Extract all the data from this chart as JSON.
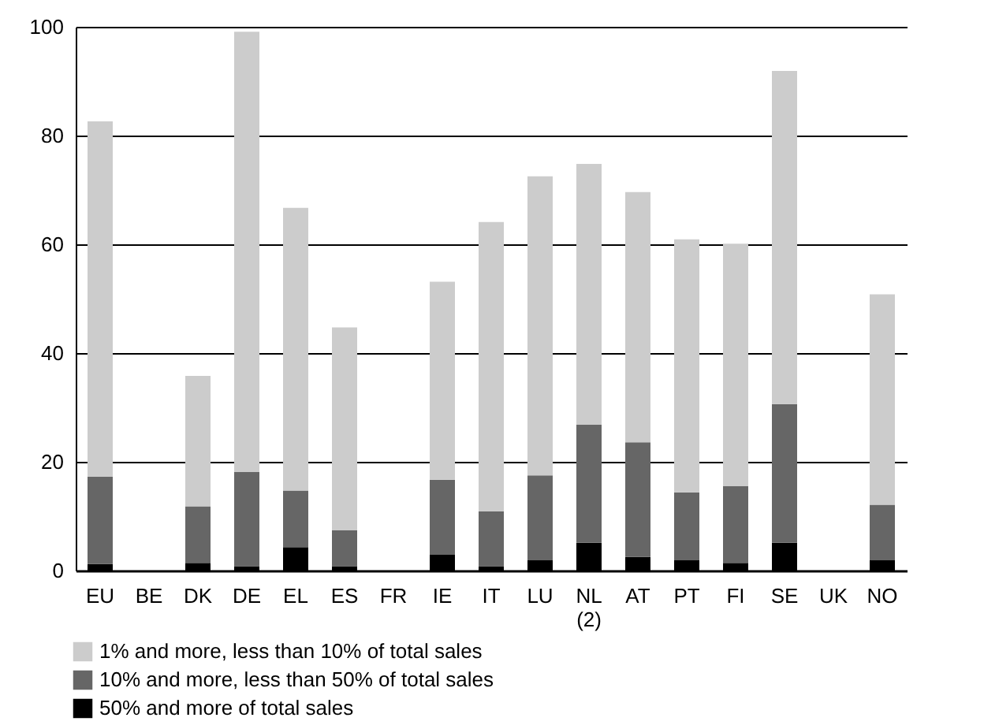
{
  "chart_data": {
    "type": "bar",
    "stacked": true,
    "categories": [
      "EU",
      "BE",
      "DK",
      "DE",
      "EL",
      "ES",
      "FR",
      "IE",
      "IT",
      "LU",
      "NL\n(2)",
      "AT",
      "PT",
      "FI",
      "SE",
      "UK",
      "NO"
    ],
    "series": [
      {
        "name": "50% and more of total sales",
        "color": "#000000",
        "values": [
          1.2,
          null,
          1.4,
          0.8,
          4.3,
          0.8,
          null,
          2.9,
          0.8,
          1.9,
          5.1,
          2.5,
          1.9,
          1.4,
          5.1,
          null,
          1.9
        ]
      },
      {
        "name": "10% and more, less than 50% of total sales",
        "color": "#666666",
        "values": [
          16.1,
          null,
          10.4,
          17.3,
          10.4,
          6.6,
          null,
          13.8,
          10.1,
          15.6,
          21.7,
          21.1,
          12.5,
          14.1,
          25.5,
          null,
          10.2
        ]
      },
      {
        "name": "1% and more, less than 10% of total sales",
        "color": "#cccccc",
        "values": [
          65.3,
          null,
          24.0,
          81.0,
          52.0,
          37.3,
          null,
          36.4,
          53.2,
          55.0,
          48.0,
          46.0,
          46.5,
          44.6,
          61.3,
          null,
          38.7
        ]
      }
    ],
    "ylim": [
      0,
      100
    ],
    "yticks": [
      0,
      20,
      40,
      60,
      80,
      100
    ],
    "grid": "y",
    "legend": "bottom left"
  }
}
